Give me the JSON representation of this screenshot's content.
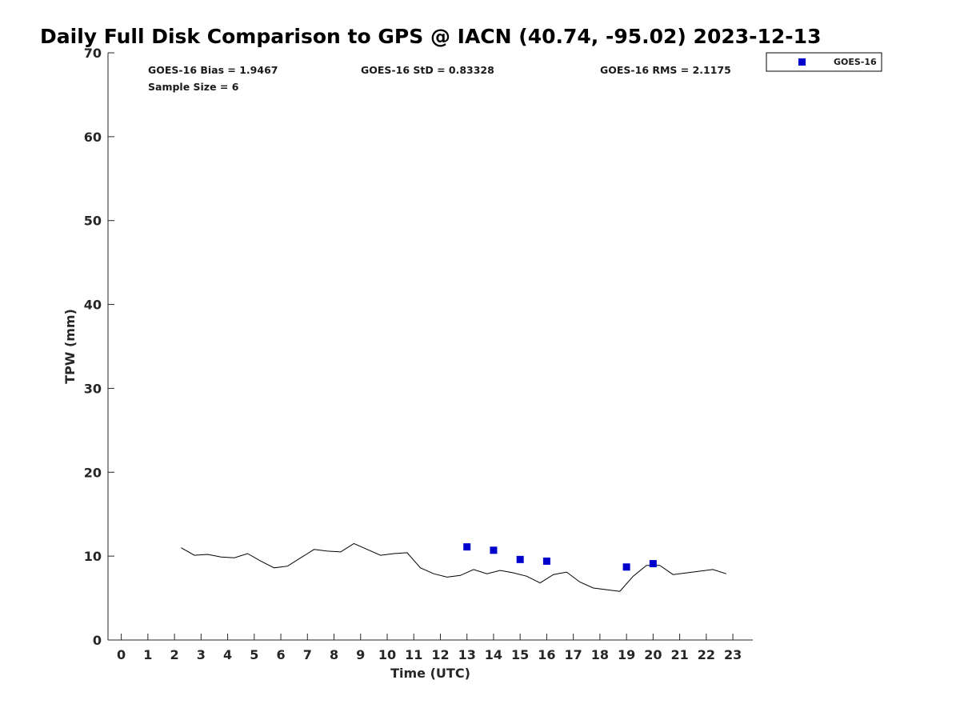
{
  "chart_data": {
    "type": "line",
    "title": "Daily Full Disk Comparison to GPS @ IACN (40.74, -95.02) 2023-12-13",
    "xlabel": "Time (UTC)",
    "ylabel": "TPW (mm)",
    "xlim": [
      -0.5,
      23.75
    ],
    "ylim": [
      0,
      70
    ],
    "x_ticks": [
      0,
      1,
      2,
      3,
      4,
      5,
      6,
      7,
      8,
      9,
      10,
      11,
      12,
      13,
      14,
      15,
      16,
      17,
      18,
      19,
      20,
      21,
      22,
      23
    ],
    "y_ticks": [
      0,
      10,
      20,
      30,
      40,
      50,
      60,
      70
    ],
    "grid": false,
    "stats": {
      "bias": "GOES-16 Bias = 1.9467",
      "std": "GOES-16 StD = 0.83328",
      "rms": "GOES-16 RMS = 2.1175",
      "sample": "Sample Size = 6"
    },
    "legend": {
      "placement": "top-right, outside plot",
      "entries": [
        "GOES-16"
      ]
    },
    "series": [
      {
        "kind": "line",
        "color": "#000000",
        "x": [
          2.25,
          2.75,
          3.25,
          3.75,
          4.25,
          4.75,
          5.25,
          5.75,
          6.25,
          6.75,
          7.25,
          7.75,
          8.25,
          8.75,
          9.25,
          9.75,
          10.25,
          10.75,
          11.25,
          11.75,
          12.25,
          12.75,
          13.25,
          13.75,
          14.25,
          14.75,
          15.25,
          15.75,
          16.25,
          16.75,
          17.25,
          17.75,
          18.25,
          18.75,
          19.25,
          19.75,
          20.25,
          20.75,
          21.25,
          21.75,
          22.25,
          22.75
        ],
        "y": [
          11.0,
          10.1,
          10.2,
          9.9,
          9.8,
          10.3,
          9.4,
          8.6,
          8.8,
          9.8,
          10.8,
          10.6,
          10.5,
          11.5,
          10.8,
          10.1,
          10.3,
          10.4,
          8.6,
          7.9,
          7.5,
          7.7,
          8.4,
          7.9,
          8.3,
          8.0,
          7.6,
          6.8,
          7.8,
          8.1,
          6.9,
          6.2,
          6.0,
          5.8,
          7.6,
          8.9,
          8.9,
          7.8,
          8.0,
          8.2,
          8.4,
          7.9
        ]
      },
      {
        "name": "GOES-16",
        "kind": "scatter",
        "color": "#0000cc",
        "x": [
          13,
          14,
          15,
          16,
          19,
          20
        ],
        "y": [
          11.1,
          10.7,
          9.6,
          9.4,
          8.7,
          9.1
        ]
      }
    ]
  }
}
